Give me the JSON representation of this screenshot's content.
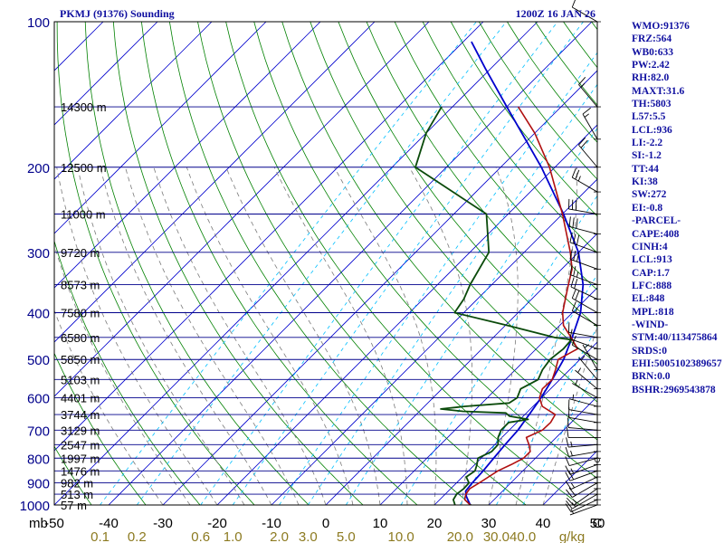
{
  "header": {
    "station": "PKMJ (91376) Sounding",
    "time": "1200Z 16 JAN 26"
  },
  "indices": [
    "WMO:91376",
    "FRZ:564",
    "WB0:633",
    "PW:2.42",
    "RH:82.0",
    "MAXT:31.6",
    "TH:5803",
    "L57:5.5",
    "LCL:936",
    "LI:-2.2",
    "SI:-1.2",
    "TT:44",
    "KI:38",
    "SW:272",
    "EI:-0.8",
    "-PARCEL-",
    "CAPE:408",
    "CINH:4",
    "LCL:913",
    "CAP:1.7",
    "LFC:888",
    "EL:848",
    "MPL:818",
    "-WIND-",
    "STM:40/113475864",
    "SRDS:0",
    "EHI:5005102389657",
    "BRN:0.0",
    "BSHR:2969543878"
  ],
  "colors": {
    "frame": "#000000",
    "isobar": "#00008b",
    "isotherm": "#0000cd",
    "dry_adiabat": "#008000",
    "moist_adiabat": "#7a7a7a",
    "mixing_ratio": "#00bfff",
    "temperature": "#b01010",
    "dewpoint": "#0a4a0a",
    "parcel": "#0000cd",
    "label": "#1010a0",
    "mixing_label": "#8c7a20"
  },
  "chart_data": {
    "type": "skew-t",
    "y_scale": "log",
    "ylim": [
      1000,
      100
    ],
    "xlim": [
      -50,
      50
    ],
    "y_unit": "mb",
    "x_unit": "C",
    "pressure_ticks": [
      100,
      200,
      300,
      400,
      500,
      600,
      700,
      800,
      900,
      1000
    ],
    "temperature_ticks": [
      -50,
      -40,
      -30,
      -20,
      -10,
      0,
      10,
      20,
      30,
      40,
      50
    ],
    "mixing_ratio_ticks": [
      "0.1",
      "0.2",
      "0.6",
      "1.0",
      "2.0",
      "3.0",
      "5.0",
      "10.0",
      "20.0",
      "30.0",
      "40.0"
    ],
    "mixing_ratio_unit": "g/kg",
    "height_labels": [
      {
        "p": 150,
        "label": "14300 m"
      },
      {
        "p": 200,
        "label": "12500 m"
      },
      {
        "p": 250,
        "label": "11000 m"
      },
      {
        "p": 300,
        "label": "9720 m"
      },
      {
        "p": 350,
        "label": "8573 m"
      },
      {
        "p": 400,
        "label": "7580 m"
      },
      {
        "p": 450,
        "label": "6580 m"
      },
      {
        "p": 500,
        "label": "5850 m"
      },
      {
        "p": 550,
        "label": "5103 m"
      },
      {
        "p": 600,
        "label": "4401 m"
      },
      {
        "p": 650,
        "label": "3744 m"
      },
      {
        "p": 700,
        "label": "3129 m"
      },
      {
        "p": 750,
        "label": "2547 m"
      },
      {
        "p": 800,
        "label": "1997 m"
      },
      {
        "p": 850,
        "label": "1476 m"
      },
      {
        "p": 900,
        "label": "982 m"
      },
      {
        "p": 950,
        "label": "513 m"
      },
      {
        "p": 1000,
        "label": "57 m"
      }
    ],
    "temperature": [
      [
        1000,
        26.6
      ],
      [
        975,
        24.6
      ],
      [
        950,
        23.8
      ],
      [
        925,
        23.5
      ],
      [
        900,
        24.2
      ],
      [
        875,
        24.8
      ],
      [
        850,
        25.4
      ],
      [
        825,
        26.7
      ],
      [
        800,
        27.8
      ],
      [
        775,
        27.8
      ],
      [
        750,
        26.3
      ],
      [
        725,
        24.5
      ],
      [
        700,
        26.1
      ],
      [
        675,
        26.2
      ],
      [
        650,
        25.6
      ],
      [
        625,
        21.7
      ],
      [
        600,
        19.6
      ],
      [
        575,
        18.5
      ],
      [
        550,
        18.6
      ],
      [
        525,
        17.4
      ],
      [
        500,
        16.0
      ],
      [
        475,
        17.6
      ],
      [
        450,
        14.3
      ],
      [
        425,
        10.7
      ],
      [
        400,
        8.2
      ],
      [
        375,
        6.2
      ],
      [
        350,
        4.1
      ],
      [
        325,
        1.9
      ],
      [
        300,
        -1.5
      ],
      [
        250,
        -10.0
      ],
      [
        200,
        -21.0
      ],
      [
        170,
        -30.0
      ],
      [
        150,
        -37.9
      ]
    ],
    "dewpoint": [
      [
        1000,
        23.8
      ],
      [
        975,
        22.5
      ],
      [
        950,
        22.1
      ],
      [
        925,
        22.4
      ],
      [
        900,
        22.3
      ],
      [
        875,
        20.7
      ],
      [
        850,
        21.2
      ],
      [
        825,
        20.4
      ],
      [
        800,
        19.4
      ],
      [
        775,
        20.7
      ],
      [
        750,
        20.6
      ],
      [
        725,
        19.3
      ],
      [
        700,
        18.5
      ],
      [
        675,
        18.5
      ],
      [
        665,
        21.5
      ],
      [
        655,
        17.5
      ],
      [
        645,
        16.2
      ],
      [
        640,
        8.0
      ],
      [
        633,
        3.5
      ],
      [
        625,
        7.5
      ],
      [
        615,
        15.0
      ],
      [
        600,
        15.5
      ],
      [
        575,
        14.5
      ],
      [
        550,
        16.0
      ],
      [
        525,
        15.0
      ],
      [
        500,
        14.5
      ],
      [
        475,
        15.0
      ],
      [
        455,
        14.8
      ],
      [
        450,
        11.2
      ],
      [
        425,
        0.4
      ],
      [
        400,
        -11.7
      ],
      [
        375,
        -12.5
      ],
      [
        350,
        -14.0
      ],
      [
        300,
        -16.5
      ],
      [
        250,
        -24.0
      ],
      [
        200,
        -45.7
      ],
      [
        170,
        -50.0
      ],
      [
        150,
        -52.0
      ]
    ],
    "parcel": [
      [
        1000,
        26.6
      ],
      [
        960,
        24.3
      ],
      [
        936,
        23.2
      ],
      [
        900,
        22.9
      ],
      [
        850,
        22.7
      ],
      [
        800,
        22.3
      ],
      [
        750,
        21.9
      ],
      [
        700,
        21.6
      ],
      [
        650,
        20.8
      ],
      [
        600,
        19.9
      ],
      [
        550,
        18.6
      ],
      [
        500,
        17.0
      ],
      [
        450,
        14.5
      ],
      [
        400,
        11.5
      ],
      [
        350,
        6.8
      ],
      [
        300,
        0.0
      ],
      [
        250,
        -9.8
      ],
      [
        200,
        -22.5
      ],
      [
        150,
        -40.0
      ],
      [
        125,
        -51.0
      ],
      [
        110,
        -58.5
      ]
    ],
    "wind_barbs": [
      {
        "p": 1000,
        "dir": 250,
        "spd": 5
      },
      {
        "p": 975,
        "dir": 245,
        "spd": 10
      },
      {
        "p": 950,
        "dir": 240,
        "spd": 15
      },
      {
        "p": 925,
        "dir": 235,
        "spd": 15
      },
      {
        "p": 900,
        "dir": 240,
        "spd": 20
      },
      {
        "p": 875,
        "dir": 245,
        "spd": 15
      },
      {
        "p": 850,
        "dir": 250,
        "spd": 20
      },
      {
        "p": 825,
        "dir": 250,
        "spd": 15
      },
      {
        "p": 800,
        "dir": 255,
        "spd": 10
      },
      {
        "p": 775,
        "dir": 260,
        "spd": 15
      },
      {
        "p": 750,
        "dir": 265,
        "spd": 15
      },
      {
        "p": 725,
        "dir": 270,
        "spd": 10
      },
      {
        "p": 700,
        "dir": 275,
        "spd": 10
      },
      {
        "p": 675,
        "dir": 280,
        "spd": 10
      },
      {
        "p": 650,
        "dir": 280,
        "spd": 10
      },
      {
        "p": 625,
        "dir": 285,
        "spd": 5
      },
      {
        "p": 600,
        "dir": 300,
        "spd": 5
      },
      {
        "p": 575,
        "dir": 310,
        "spd": 5
      },
      {
        "p": 550,
        "dir": 320,
        "spd": 5
      },
      {
        "p": 525,
        "dir": 330,
        "spd": 5
      },
      {
        "p": 500,
        "dir": 300,
        "spd": 10
      },
      {
        "p": 475,
        "dir": 290,
        "spd": 10
      },
      {
        "p": 450,
        "dir": 280,
        "spd": 10
      },
      {
        "p": 425,
        "dir": 300,
        "spd": 15
      },
      {
        "p": 400,
        "dir": 300,
        "spd": 20
      },
      {
        "p": 375,
        "dir": 295,
        "spd": 20
      },
      {
        "p": 350,
        "dir": 290,
        "spd": 25
      },
      {
        "p": 325,
        "dir": 290,
        "spd": 30
      },
      {
        "p": 300,
        "dir": 290,
        "spd": 30
      },
      {
        "p": 275,
        "dir": 285,
        "spd": 30
      },
      {
        "p": 250,
        "dir": 280,
        "spd": 30
      },
      {
        "p": 225,
        "dir": 300,
        "spd": 25
      },
      {
        "p": 200,
        "dir": 320,
        "spd": 20
      },
      {
        "p": 175,
        "dir": 330,
        "spd": 15
      },
      {
        "p": 150,
        "dir": 320,
        "spd": 15
      },
      {
        "p": 100,
        "dir": 300,
        "spd": 10
      }
    ]
  }
}
